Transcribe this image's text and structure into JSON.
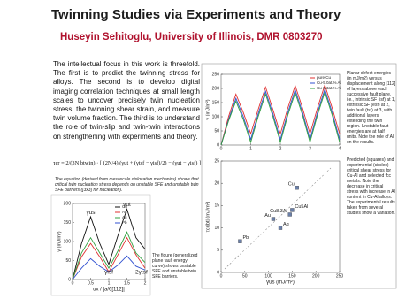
{
  "header": {
    "title": "Twinning Studies via Experiments and Theory",
    "subtitle": "Huseyin Sehitoglu, University of Illinois, DMR 0803270"
  },
  "intro": "The intellectual focus in this work is threefold. The first is to predict the twinning stress for alloys. The second is to develop digital imaging correlation techniques at small length scales to uncover precisely twin nucleation stress, the twinning shear strain, and measure twin volume fraction. The third is to understand the role of twin-slip and twin-twin interactions on strengthening with experiments and theory.",
  "equation": "τcr = 2/(3N btwin) · [ (2N/4) (γut + (γtsf − γisf)/2) − (γut − γisf) ]",
  "captions": {
    "equation": "The equation (derived from mesoscale dislocation mechanics) shows that critical twin nucleation stress depends on unstable SFE and unstable twin SFE barriers ([3x3] for nucleation).",
    "gpfe": "The figure (generalized plane fault energy curve) shows unstable SFE and unstable twin SFE barriers.",
    "planar_defect": "Planar defect energies (in mJ/m2) versus displacement along [112] of layers above each successive fault plane, i.e., intrinsic SF (isf) at 1, extrinsic SF (esf) at 2, twin fault (tsf) at 3, with additional layers extending the twin region. Unstable fault energies are at half units. Note the role of Al on the results.",
    "critical_stress": "Predicted (squares) and experimental (circles) critical shear stress for Cu-Al and selected fcc metals. Note the decrease in critical stress with increase in Al content in Cu-Al alloys. The experimental results taken from several studies show a variation."
  },
  "chart_data": [
    {
      "type": "line",
      "ylabel": "γ (mJ/m²)",
      "x": [
        0,
        0.25,
        0.5,
        0.75,
        1,
        1.25,
        1.5,
        1.75,
        2,
        2.25,
        2.5,
        2.75,
        3,
        3.25,
        3.5,
        3.75,
        4
      ],
      "xlim": [
        0,
        4
      ],
      "xticks": [
        0,
        1,
        2,
        3,
        4
      ],
      "ylim": [
        0,
        250
      ],
      "yticks": [
        0,
        50,
        100,
        150,
        200,
        250
      ],
      "series": [
        {
          "name": "pure Cu",
          "color": "#e03030",
          "values": [
            0,
            100,
            180,
            115,
            40,
            125,
            205,
            125,
            40,
            130,
            210,
            130,
            40,
            130,
            212,
            130,
            40
          ]
        },
        {
          "name": "Cu-5.0at.% Al",
          "color": "#3050d0",
          "values": [
            0,
            90,
            165,
            100,
            20,
            110,
            190,
            110,
            20,
            115,
            195,
            115,
            20,
            115,
            197,
            115,
            20
          ]
        },
        {
          "name": "Cu-8.3at.% Al",
          "color": "#30a040",
          "values": [
            0,
            85,
            155,
            90,
            10,
            100,
            180,
            100,
            10,
            105,
            185,
            105,
            10,
            105,
            187,
            105,
            10
          ]
        }
      ]
    },
    {
      "type": "line",
      "ylabel": "γ (mJ/m²)",
      "xlabel": "ux / |a/6[112]|",
      "x": [
        0,
        0.25,
        0.5,
        0.75,
        1,
        1.25,
        1.5,
        1.75,
        2
      ],
      "xlim": [
        0,
        2
      ],
      "xticks": [
        0,
        0.5,
        1,
        1.5,
        2
      ],
      "ylim": [
        0,
        200
      ],
      "yticks": [
        0,
        50,
        100,
        150,
        200
      ],
      "annotations": [
        "γus",
        "γut",
        "γisf",
        "2γtsf"
      ],
      "series": [
        {
          "name": "Cu",
          "color": "#111111",
          "values": [
            0,
            95,
            165,
            95,
            40,
            115,
            185,
            110,
            80
          ]
        },
        {
          "name": "Ag",
          "color": "#e03030",
          "values": [
            0,
            60,
            95,
            60,
            20,
            65,
            110,
            65,
            30
          ]
        },
        {
          "name": "Au",
          "color": "#30a040",
          "values": [
            0,
            70,
            110,
            70,
            30,
            75,
            125,
            70,
            45
          ]
        },
        {
          "name": "Pb",
          "color": "#3050d0",
          "values": [
            0,
            30,
            55,
            35,
            20,
            38,
            62,
            35,
            25
          ]
        }
      ]
    },
    {
      "type": "scatter",
      "ylabel": "τcr|bt| (mJ/m²)",
      "xlabel": "γus (mJ/m²)",
      "color": "#6a7fa8",
      "xlim": [
        0,
        250
      ],
      "xticks": [
        0,
        50,
        100,
        150,
        200,
        250
      ],
      "ylim": [
        0,
        25
      ],
      "yticks": [
        0,
        5,
        10,
        15,
        20,
        25
      ],
      "labels": [
        "Pb",
        "Au",
        "Ag",
        "Cu8.3Al",
        "Cu5Al",
        "Cu"
      ],
      "x": [
        40,
        110,
        125,
        145,
        150,
        160
      ],
      "values": [
        7,
        12,
        10,
        13,
        14,
        19
      ]
    }
  ]
}
